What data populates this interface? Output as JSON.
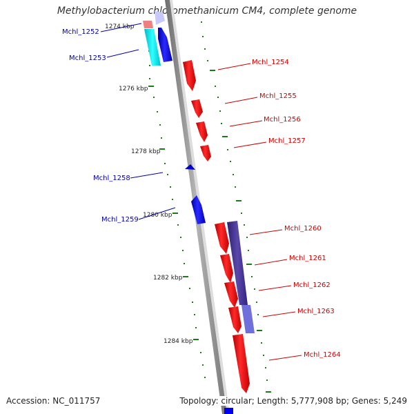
{
  "title": "Methylobacterium chloromethanicum CM4, complete genome",
  "footer": {
    "accession": "Accession: NC_011757",
    "topology": "Topology: circular; Length: 5,777,908 bp; Genes: 5,249"
  },
  "colors": {
    "backbone": "#8c8c8c",
    "tick": "#1a7a1a",
    "forward_gene": "#ff0000",
    "reverse_gene": "#0000ee",
    "cds_feature": "#4a3a9a",
    "reverse_label": "#0000aa",
    "forward_label": "#cc0000"
  },
  "ruler_labels": [
    "1274 kbp",
    "1276 kbp",
    "1278 kbp",
    "1280 kbp",
    "1282 kbp",
    "1284 kbp"
  ],
  "genes": [
    {
      "name": "Mchl_1252",
      "strand": "reverse"
    },
    {
      "name": "Mchl_1253",
      "strand": "reverse"
    },
    {
      "name": "Mchl_1254",
      "strand": "forward"
    },
    {
      "name": "Mchl_1255",
      "strand": "forward"
    },
    {
      "name": "Mchl_1256",
      "strand": "forward"
    },
    {
      "name": "Mchl_1257",
      "strand": "forward"
    },
    {
      "name": "Mchl_1258",
      "strand": "reverse"
    },
    {
      "name": "Mchl_1259",
      "strand": "reverse"
    },
    {
      "name": "Mchl_1260",
      "strand": "forward"
    },
    {
      "name": "Mchl_1261",
      "strand": "forward"
    },
    {
      "name": "Mchl_1262",
      "strand": "forward"
    },
    {
      "name": "Mchl_1263",
      "strand": "forward"
    },
    {
      "name": "Mchl_1264",
      "strand": "forward"
    }
  ]
}
